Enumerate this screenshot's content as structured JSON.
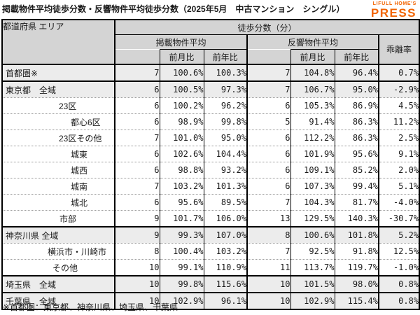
{
  "title": "掲載物件平均徒歩分数・反響物件平均徒歩分数（2025年5月　中古マンション　シングル）",
  "logo": {
    "brand": "LIFULL HOME'S",
    "press": "PRESS",
    "color": "#F26400"
  },
  "table": {
    "headers": {
      "corner": "都道府県 エリア",
      "group": "徒歩分数（分）",
      "listed": "掲載物件平均",
      "response": "反響物件平均",
      "mom": "前月比",
      "yoy": "前年比",
      "deviation": "乖離率"
    }
  },
  "footnote": "※首都圏：東京都、神奈川県、埼玉県、千葉県",
  "chart_data": {
    "type": "table",
    "title": "掲載物件平均徒歩分数・反響物件平均徒歩分数（2025年5月　中古マンション　シングル）",
    "columns": [
      "都道府県 エリア",
      "掲載物件平均",
      "掲載物件平均 前月比",
      "掲載物件平均 前年比",
      "反響物件平均",
      "反響物件平均 前月比",
      "反響物件平均 前年比",
      "乖離率"
    ],
    "rows": [
      {
        "area": "首都圏※",
        "indent": 4,
        "summary": true,
        "group_start": true,
        "values": [
          "7",
          "100.6%",
          "100.3%",
          "7",
          "104.8%",
          "96.4%",
          "0.7%"
        ]
      },
      {
        "area": "東京都　全域",
        "indent": 4,
        "summary": true,
        "group_start": true,
        "values": [
          "6",
          "100.5%",
          "97.3%",
          "7",
          "106.7%",
          "95.0%",
          "-2.9%"
        ]
      },
      {
        "area": "23区",
        "indent": 80,
        "summary": false,
        "group_start": false,
        "values": [
          "6",
          "100.2%",
          "96.2%",
          "6",
          "105.3%",
          "86.9%",
          "4.5%"
        ]
      },
      {
        "area": "都心6区",
        "indent": 97,
        "summary": false,
        "group_start": false,
        "values": [
          "6",
          "98.9%",
          "99.8%",
          "5",
          "91.4%",
          "86.3%",
          "11.2%"
        ]
      },
      {
        "area": "23区その他",
        "indent": 80,
        "summary": false,
        "group_start": false,
        "values": [
          "7",
          "101.0%",
          "95.0%",
          "6",
          "112.2%",
          "86.3%",
          "2.5%"
        ]
      },
      {
        "area": "城東",
        "indent": 97,
        "summary": false,
        "group_start": false,
        "values": [
          "6",
          "102.6%",
          "104.4%",
          "6",
          "101.9%",
          "95.6%",
          "9.1%"
        ]
      },
      {
        "area": "城西",
        "indent": 97,
        "summary": false,
        "group_start": false,
        "values": [
          "6",
          "98.8%",
          "93.2%",
          "6",
          "109.1%",
          "85.2%",
          "2.0%"
        ]
      },
      {
        "area": "城南",
        "indent": 97,
        "summary": false,
        "group_start": false,
        "values": [
          "7",
          "103.2%",
          "101.3%",
          "6",
          "107.3%",
          "99.4%",
          "5.1%"
        ]
      },
      {
        "area": "城北",
        "indent": 97,
        "summary": false,
        "group_start": false,
        "values": [
          "6",
          "95.6%",
          "89.5%",
          "7",
          "104.3%",
          "81.7%",
          "-4.0%"
        ]
      },
      {
        "area": "市部",
        "indent": 81,
        "summary": false,
        "group_start": false,
        "values": [
          "9",
          "101.7%",
          "106.0%",
          "13",
          "129.5%",
          "140.3%",
          "-30.7%"
        ]
      },
      {
        "area": "神奈川県 全域",
        "indent": 4,
        "summary": true,
        "group_start": true,
        "values": [
          "9",
          "99.3%",
          "107.0%",
          "8",
          "100.6%",
          "101.8%",
          "5.2%"
        ]
      },
      {
        "area": "横浜市・川崎市",
        "indent": 64,
        "summary": false,
        "group_start": false,
        "values": [
          "8",
          "100.4%",
          "103.2%",
          "7",
          "92.5%",
          "91.8%",
          "12.5%"
        ]
      },
      {
        "area": "その他",
        "indent": 71,
        "summary": false,
        "group_start": false,
        "values": [
          "10",
          "99.1%",
          "110.9%",
          "11",
          "113.7%",
          "119.7%",
          "-1.0%"
        ]
      },
      {
        "area": "埼玉県　全域",
        "indent": 4,
        "summary": true,
        "group_start": true,
        "values": [
          "10",
          "99.8%",
          "115.6%",
          "10",
          "101.5%",
          "98.0%",
          "0.8%"
        ]
      },
      {
        "area": "千葉県　全域",
        "indent": 4,
        "summary": true,
        "group_start": true,
        "values": [
          "10",
          "102.9%",
          "96.1%",
          "10",
          "102.9%",
          "115.4%",
          "0.8%"
        ]
      }
    ]
  }
}
